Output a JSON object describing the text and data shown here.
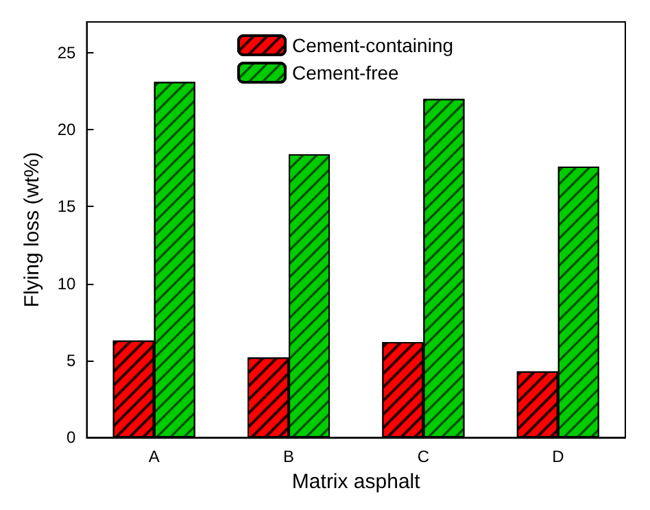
{
  "chart_data": {
    "type": "bar",
    "xlabel": "Matrix asphalt",
    "ylabel": "Flying loss (wt%)",
    "categories": [
      "A",
      "B",
      "C",
      "D"
    ],
    "series": [
      {
        "name": "Cement-containing",
        "color": "#ff0000",
        "values": [
          6.3,
          5.2,
          6.2,
          4.3
        ]
      },
      {
        "name": "Cement-free",
        "color": "#00cc00",
        "values": [
          23.1,
          18.4,
          22.0,
          17.6
        ]
      }
    ],
    "ylim": [
      0,
      27
    ],
    "yticks": [
      0,
      5,
      10,
      15,
      20,
      25
    ],
    "grid": false,
    "legend": "top"
  }
}
